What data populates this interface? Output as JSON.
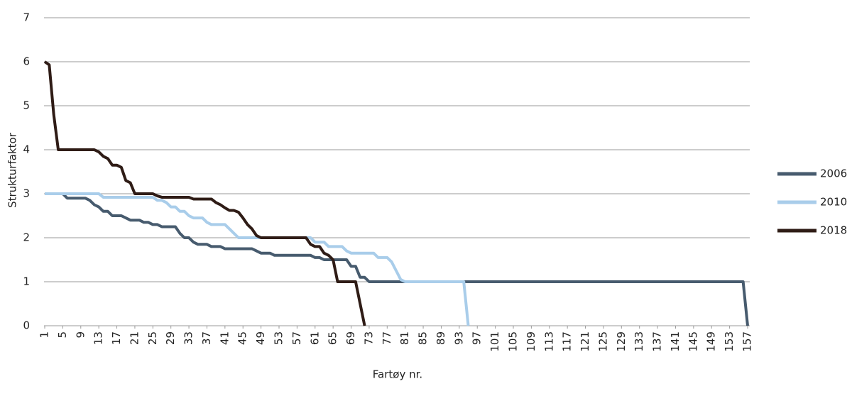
{
  "chart_data": {
    "type": "line",
    "xlabel": "Fartøy nr.",
    "ylabel": "Strukturfaktor",
    "xlim": [
      1,
      157
    ],
    "xticks": [
      1,
      5,
      9,
      13,
      17,
      21,
      25,
      29,
      33,
      37,
      41,
      45,
      49,
      53,
      57,
      61,
      65,
      69,
      73,
      77,
      81,
      85,
      89,
      93,
      97,
      101,
      105,
      109,
      113,
      117,
      121,
      125,
      129,
      133,
      137,
      141,
      145,
      149,
      153,
      157
    ],
    "ylim": [
      0,
      7
    ],
    "yticks": [
      0,
      1,
      2,
      3,
      4,
      5,
      6,
      7
    ],
    "grid": true,
    "legend": "right",
    "series": [
      {
        "name": "2006",
        "color": "#475b6e",
        "x": [
          1,
          5,
          6,
          10,
          11,
          12,
          13,
          14,
          15,
          16,
          18,
          19,
          20,
          22,
          23,
          24,
          25,
          26,
          27,
          30,
          31,
          32,
          33,
          34,
          35,
          37,
          38,
          40,
          41,
          47,
          48,
          49,
          51,
          52,
          60,
          61,
          62,
          63,
          68,
          69,
          70,
          71,
          72,
          73,
          156,
          157
        ],
        "values": [
          3,
          3,
          2.9,
          2.9,
          2.85,
          2.75,
          2.7,
          2.6,
          2.6,
          2.5,
          2.5,
          2.45,
          2.4,
          2.4,
          2.35,
          2.35,
          2.3,
          2.3,
          2.25,
          2.25,
          2.1,
          2,
          2,
          1.9,
          1.85,
          1.85,
          1.8,
          1.8,
          1.75,
          1.75,
          1.7,
          1.65,
          1.65,
          1.6,
          1.6,
          1.55,
          1.55,
          1.5,
          1.5,
          1.35,
          1.35,
          1.1,
          1.1,
          1,
          1,
          0
        ]
      },
      {
        "name": "2010",
        "color": "#a9cdea",
        "x": [
          1,
          13,
          14,
          25,
          26,
          27,
          28,
          29,
          30,
          31,
          32,
          33,
          34,
          36,
          37,
          38,
          41,
          42,
          43,
          44,
          60,
          61,
          63,
          64,
          67,
          68,
          69,
          74,
          75,
          77,
          78,
          79,
          80,
          81,
          94,
          95
        ],
        "values": [
          3,
          3,
          2.92,
          2.92,
          2.85,
          2.85,
          2.8,
          2.7,
          2.7,
          2.6,
          2.6,
          2.5,
          2.45,
          2.45,
          2.35,
          2.3,
          2.3,
          2.2,
          2.1,
          2,
          2,
          1.9,
          1.9,
          1.8,
          1.8,
          1.7,
          1.65,
          1.65,
          1.55,
          1.55,
          1.45,
          1.25,
          1.05,
          1,
          1,
          0
        ]
      },
      {
        "name": "2018",
        "color": "#2f1c16",
        "x": [
          1,
          2,
          3,
          4,
          12,
          13,
          14,
          15,
          16,
          17,
          18,
          19,
          20,
          21,
          25,
          26,
          27,
          33,
          34,
          38,
          39,
          40,
          41,
          42,
          43,
          44,
          45,
          46,
          47,
          48,
          49,
          59,
          60,
          61,
          62,
          63,
          64,
          65,
          66,
          70,
          72
        ],
        "values": [
          6,
          5.93,
          4.8,
          4,
          4,
          3.95,
          3.85,
          3.8,
          3.65,
          3.65,
          3.6,
          3.3,
          3.25,
          3,
          3,
          2.95,
          2.92,
          2.92,
          2.88,
          2.88,
          2.8,
          2.75,
          2.68,
          2.62,
          2.62,
          2.58,
          2.45,
          2.3,
          2.2,
          2.05,
          2,
          2,
          1.85,
          1.8,
          1.8,
          1.65,
          1.6,
          1.5,
          1,
          1,
          0
        ]
      }
    ]
  }
}
